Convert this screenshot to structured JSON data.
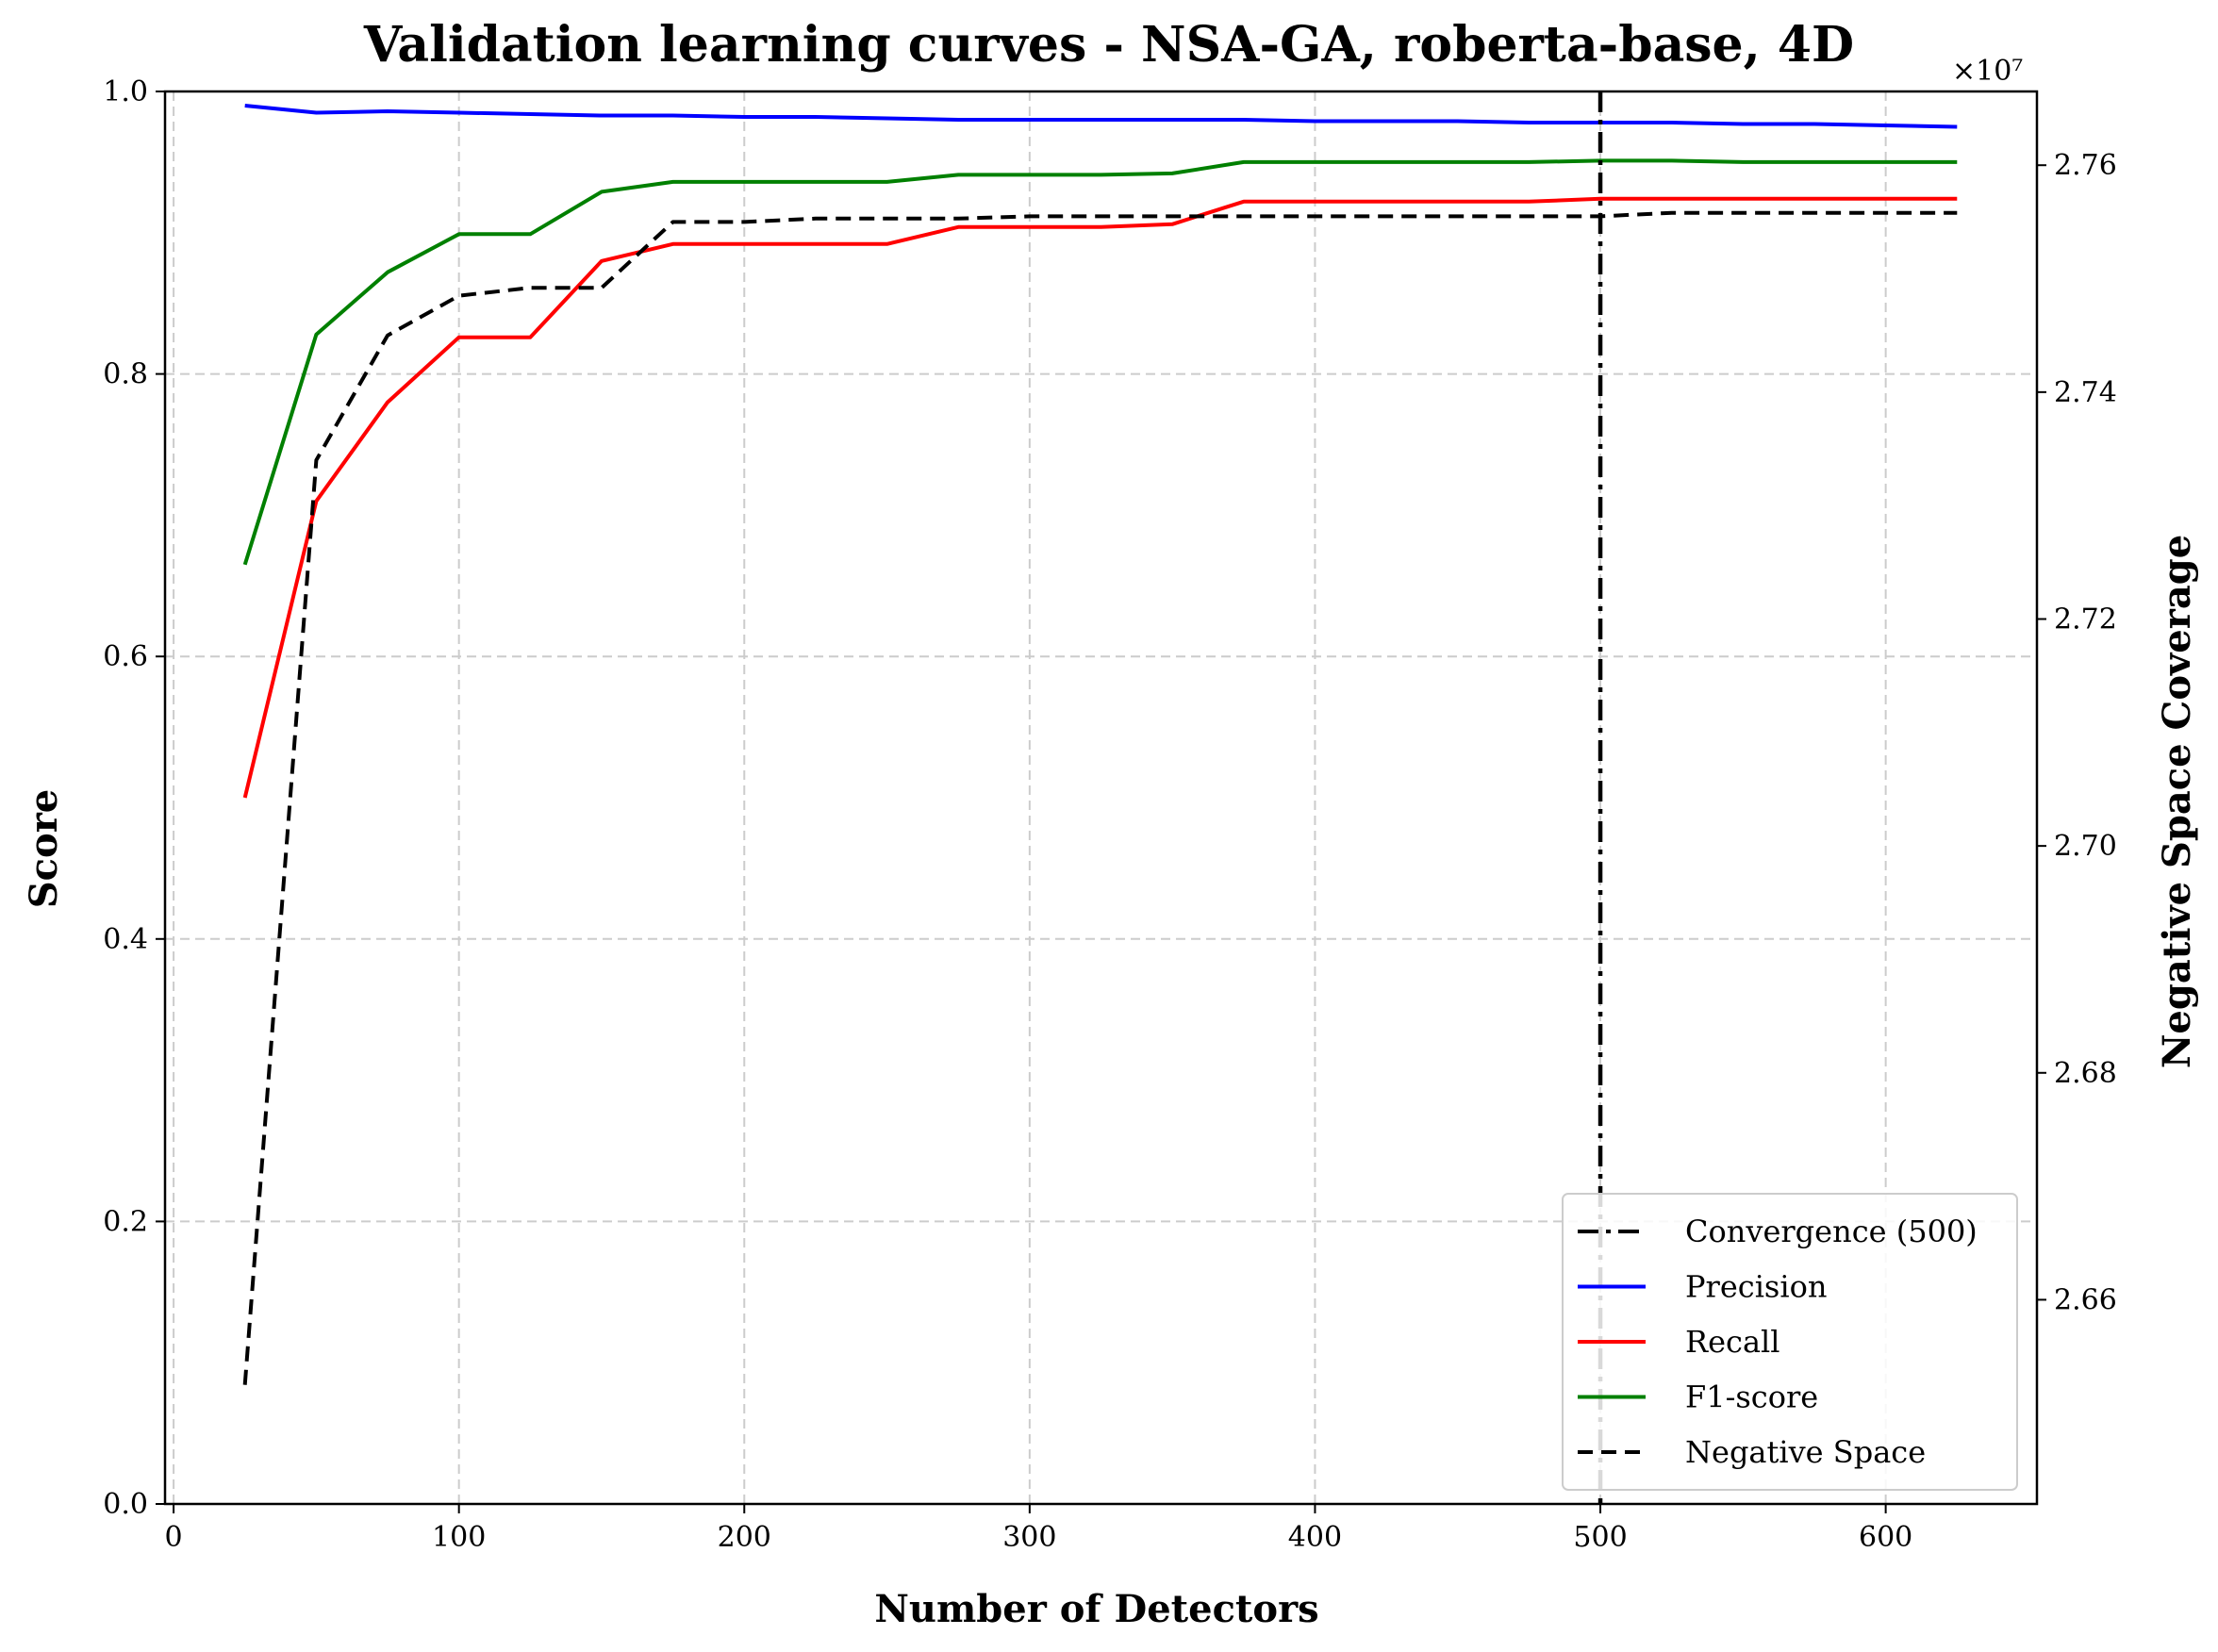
{
  "chart_data": {
    "type": "line",
    "title": "Validation learning curves - NSA-GA, roberta-base, 4D",
    "xlabel": "Number of Detectors",
    "ylabel": "Score",
    "y2label": "Negative Space Coverage",
    "y2_multiplier": "×10⁷",
    "xlim": [
      -3,
      653
    ],
    "ylim": [
      0,
      1
    ],
    "y2lim": [
      26420000,
      27665000
    ],
    "xticks": [
      "0",
      "100",
      "200",
      "300",
      "400",
      "500",
      "600"
    ],
    "yticks": [
      "0.0",
      "0.2",
      "0.4",
      "0.6",
      "0.8",
      "1.0"
    ],
    "y2ticks": [
      "2.66",
      "2.68",
      "2.70",
      "2.72",
      "2.74",
      "2.76"
    ],
    "grid": true,
    "legend_position": "lower-right",
    "convergence": {
      "name": "Convergence (500)",
      "x": 500,
      "color": "#000000"
    },
    "x": [
      25,
      50,
      75,
      100,
      125,
      150,
      175,
      200,
      225,
      250,
      275,
      300,
      325,
      350,
      375,
      400,
      425,
      450,
      475,
      500,
      525,
      550,
      575,
      600,
      625
    ],
    "series": [
      {
        "name": "Precision",
        "color": "#0000ff",
        "axis": "left",
        "values": [
          0.99,
          0.985,
          0.986,
          0.985,
          0.984,
          0.983,
          0.983,
          0.982,
          0.982,
          0.981,
          0.98,
          0.98,
          0.98,
          0.98,
          0.98,
          0.979,
          0.979,
          0.979,
          0.978,
          0.978,
          0.978,
          0.977,
          0.977,
          0.976,
          0.975
        ]
      },
      {
        "name": "Recall",
        "color": "#ff0000",
        "axis": "left",
        "values": [
          0.5,
          0.71,
          0.78,
          0.826,
          0.826,
          0.88,
          0.892,
          0.892,
          0.892,
          0.892,
          0.904,
          0.904,
          0.904,
          0.906,
          0.922,
          0.922,
          0.922,
          0.922,
          0.922,
          0.924,
          0.924,
          0.924,
          0.924,
          0.924,
          0.924
        ]
      },
      {
        "name": "F1-score",
        "color": "#008000",
        "axis": "left",
        "values": [
          0.665,
          0.828,
          0.872,
          0.899,
          0.899,
          0.929,
          0.936,
          0.936,
          0.936,
          0.936,
          0.941,
          0.941,
          0.941,
          0.942,
          0.95,
          0.95,
          0.95,
          0.95,
          0.95,
          0.951,
          0.951,
          0.95,
          0.95,
          0.95,
          0.95
        ]
      },
      {
        "name": "Negative Space",
        "color": "#000000",
        "axis": "right",
        "dash": true,
        "values": [
          26525000,
          27340000,
          27450000,
          27485000,
          27492000,
          27492000,
          27550000,
          27550000,
          27553000,
          27553000,
          27553000,
          27555000,
          27555000,
          27555000,
          27555000,
          27555000,
          27555000,
          27555000,
          27555000,
          27555000,
          27558000,
          27558000,
          27558000,
          27558000,
          27558000
        ]
      }
    ]
  }
}
